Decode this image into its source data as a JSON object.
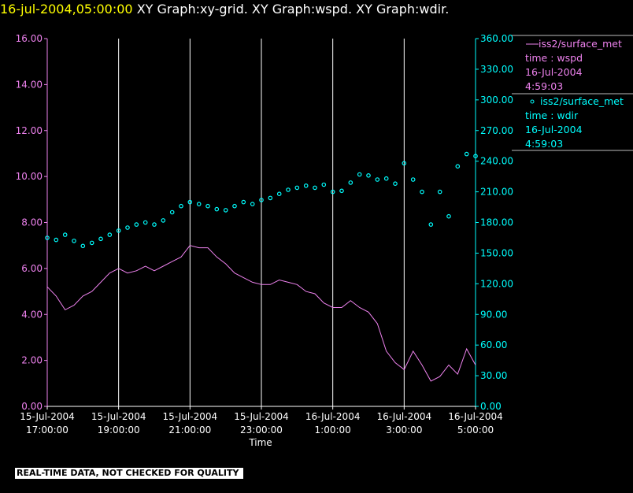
{
  "header": {
    "date_label": "16-jul-2004,05:00:00",
    "graphs_label": " XY Graph:xy-grid.  XY Graph:wspd.  XY Graph:wdir."
  },
  "footer": {
    "quality_notice": "REAL-TIME DATA, NOT CHECKED FOR QUALITY"
  },
  "colors": {
    "background": "#000000",
    "wspd": "#ee82ee",
    "wdir": "#00ffff",
    "grid": "#ffffff",
    "axis_text": "#ffffff",
    "title_date": "#ffff00"
  },
  "chart_data": {
    "type": "line",
    "xlabel": "Time",
    "x_ticks": [
      {
        "time": "15-Jul-2004 17:00",
        "line1": "15-Jul-2004",
        "line2": "17:00:00"
      },
      {
        "time": "15-Jul-2004 19:00",
        "line1": "15-Jul-2004",
        "line2": "19:00:00"
      },
      {
        "time": "15-Jul-2004 21:00",
        "line1": "15-Jul-2004",
        "line2": "21:00:00"
      },
      {
        "time": "15-Jul-2004 23:00",
        "line1": "15-Jul-2004",
        "line2": "23:00:00"
      },
      {
        "time": "16-Jul-2004 01:00",
        "line1": "16-Jul-2004",
        "line2": "1:00:00"
      },
      {
        "time": "16-Jul-2004 03:00",
        "line1": "16-Jul-2004",
        "line2": "3:00:00"
      },
      {
        "time": "16-Jul-2004 05:00",
        "line1": "16-Jul-2004",
        "line2": "5:00:00"
      }
    ],
    "x_range": [
      "15-Jul-2004 17:00",
      "16-Jul-2004 05:00"
    ],
    "y_left": {
      "range": [
        0,
        16
      ],
      "ticks": [
        "0.00",
        "2.00",
        "4.00",
        "6.00",
        "8.00",
        "10.00",
        "12.00",
        "14.00",
        "16.00"
      ]
    },
    "y_right": {
      "range": [
        0,
        360
      ],
      "ticks": [
        "0.00",
        "30.00",
        "60.00",
        "90.00",
        "120.00",
        "150.00",
        "180.00",
        "210.00",
        "240.00",
        "270.00",
        "300.00",
        "330.00",
        "360.00"
      ]
    },
    "grid": "vertical",
    "legend_position": "right",
    "series": [
      {
        "name": "iss2/surface_met",
        "legend_lines": [
          "iss2/surface_met",
          "time : wspd",
          "16-Jul-2004",
          "4:59:03"
        ],
        "axis": "left",
        "style": "line",
        "points": [
          [
            "15-Jul-2004 17:00",
            5.2
          ],
          [
            "15-Jul-2004 17:15",
            4.8
          ],
          [
            "15-Jul-2004 17:30",
            4.2
          ],
          [
            "15-Jul-2004 17:45",
            4.4
          ],
          [
            "15-Jul-2004 18:00",
            4.8
          ],
          [
            "15-Jul-2004 18:15",
            5.0
          ],
          [
            "15-Jul-2004 18:30",
            5.4
          ],
          [
            "15-Jul-2004 18:45",
            5.8
          ],
          [
            "15-Jul-2004 19:00",
            6.0
          ],
          [
            "15-Jul-2004 19:15",
            5.8
          ],
          [
            "15-Jul-2004 19:30",
            5.9
          ],
          [
            "15-Jul-2004 19:45",
            6.1
          ],
          [
            "15-Jul-2004 20:00",
            5.9
          ],
          [
            "15-Jul-2004 20:15",
            6.1
          ],
          [
            "15-Jul-2004 20:30",
            6.3
          ],
          [
            "15-Jul-2004 20:45",
            6.5
          ],
          [
            "15-Jul-2004 21:00",
            7.0
          ],
          [
            "15-Jul-2004 21:15",
            6.9
          ],
          [
            "15-Jul-2004 21:30",
            6.9
          ],
          [
            "15-Jul-2004 21:45",
            6.5
          ],
          [
            "15-Jul-2004 22:00",
            6.2
          ],
          [
            "15-Jul-2004 22:15",
            5.8
          ],
          [
            "15-Jul-2004 22:30",
            5.6
          ],
          [
            "15-Jul-2004 22:45",
            5.4
          ],
          [
            "15-Jul-2004 23:00",
            5.3
          ],
          [
            "15-Jul-2004 23:15",
            5.3
          ],
          [
            "15-Jul-2004 23:30",
            5.5
          ],
          [
            "15-Jul-2004 23:45",
            5.4
          ],
          [
            "16-Jul-2004 00:00",
            5.3
          ],
          [
            "16-Jul-2004 00:15",
            5.0
          ],
          [
            "16-Jul-2004 00:30",
            4.9
          ],
          [
            "16-Jul-2004 00:45",
            4.5
          ],
          [
            "16-Jul-2004 01:00",
            4.3
          ],
          [
            "16-Jul-2004 01:15",
            4.3
          ],
          [
            "16-Jul-2004 01:30",
            4.6
          ],
          [
            "16-Jul-2004 01:45",
            4.3
          ],
          [
            "16-Jul-2004 02:00",
            4.1
          ],
          [
            "16-Jul-2004 02:15",
            3.6
          ],
          [
            "16-Jul-2004 02:30",
            2.4
          ],
          [
            "16-Jul-2004 02:45",
            1.9
          ],
          [
            "16-Jul-2004 03:00",
            1.6
          ],
          [
            "16-Jul-2004 03:15",
            2.4
          ],
          [
            "16-Jul-2004 03:30",
            1.8
          ],
          [
            "16-Jul-2004 03:45",
            1.1
          ],
          [
            "16-Jul-2004 04:00",
            1.3
          ],
          [
            "16-Jul-2004 04:15",
            1.8
          ],
          [
            "16-Jul-2004 04:30",
            1.4
          ],
          [
            "16-Jul-2004 04:45",
            2.5
          ],
          [
            "16-Jul-2004 05:00",
            1.8
          ]
        ]
      },
      {
        "name": "iss2/surface_met",
        "legend_lines": [
          "iss2/surface_met",
          "time : wdir",
          "16-Jul-2004",
          "4:59:03"
        ],
        "axis": "right",
        "style": "circles",
        "points": [
          [
            "15-Jul-2004 17:00",
            165
          ],
          [
            "15-Jul-2004 17:15",
            163
          ],
          [
            "15-Jul-2004 17:30",
            168
          ],
          [
            "15-Jul-2004 17:45",
            162
          ],
          [
            "15-Jul-2004 18:00",
            157
          ],
          [
            "15-Jul-2004 18:15",
            160
          ],
          [
            "15-Jul-2004 18:30",
            164
          ],
          [
            "15-Jul-2004 18:45",
            168
          ],
          [
            "15-Jul-2004 19:00",
            172
          ],
          [
            "15-Jul-2004 19:15",
            175
          ],
          [
            "15-Jul-2004 19:30",
            178
          ],
          [
            "15-Jul-2004 19:45",
            180
          ],
          [
            "15-Jul-2004 20:00",
            178
          ],
          [
            "15-Jul-2004 20:15",
            182
          ],
          [
            "15-Jul-2004 20:30",
            190
          ],
          [
            "15-Jul-2004 20:45",
            196
          ],
          [
            "15-Jul-2004 21:00",
            200
          ],
          [
            "15-Jul-2004 21:15",
            198
          ],
          [
            "15-Jul-2004 21:30",
            196
          ],
          [
            "15-Jul-2004 21:45",
            193
          ],
          [
            "15-Jul-2004 22:00",
            192
          ],
          [
            "15-Jul-2004 22:15",
            196
          ],
          [
            "15-Jul-2004 22:30",
            200
          ],
          [
            "15-Jul-2004 22:45",
            198
          ],
          [
            "15-Jul-2004 23:00",
            202
          ],
          [
            "15-Jul-2004 23:15",
            204
          ],
          [
            "15-Jul-2004 23:30",
            208
          ],
          [
            "15-Jul-2004 23:45",
            212
          ],
          [
            "16-Jul-2004 00:00",
            214
          ],
          [
            "16-Jul-2004 00:15",
            216
          ],
          [
            "16-Jul-2004 00:30",
            214
          ],
          [
            "16-Jul-2004 00:45",
            217
          ],
          [
            "16-Jul-2004 01:00",
            210
          ],
          [
            "16-Jul-2004 01:15",
            211
          ],
          [
            "16-Jul-2004 01:30",
            219
          ],
          [
            "16-Jul-2004 01:45",
            227
          ],
          [
            "16-Jul-2004 02:00",
            226
          ],
          [
            "16-Jul-2004 02:15",
            222
          ],
          [
            "16-Jul-2004 02:30",
            223
          ],
          [
            "16-Jul-2004 02:45",
            218
          ],
          [
            "16-Jul-2004 03:00",
            238
          ],
          [
            "16-Jul-2004 03:15",
            222
          ],
          [
            "16-Jul-2004 03:30",
            210
          ],
          [
            "16-Jul-2004 03:45",
            178
          ],
          [
            "16-Jul-2004 04:00",
            210
          ],
          [
            "16-Jul-2004 04:15",
            186
          ],
          [
            "16-Jul-2004 04:30",
            235
          ],
          [
            "16-Jul-2004 04:45",
            247
          ],
          [
            "16-Jul-2004 05:00",
            245
          ]
        ]
      }
    ]
  }
}
